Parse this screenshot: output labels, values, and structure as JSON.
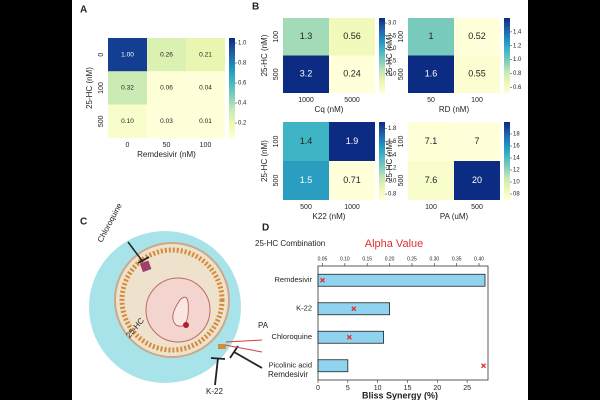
{
  "panel_labels": [
    "A",
    "B",
    "C",
    "D"
  ],
  "diagram": {
    "labels": [
      "Chloroquine",
      "25-HC",
      "PA",
      "K-22",
      "Remdesivir"
    ]
  },
  "chart_data": [
    {
      "type": "heatmap",
      "x_label": "Remdesivir (nM)",
      "y_label": "25-HC (nM)",
      "x": [
        "0",
        "50",
        "100"
      ],
      "y": [
        "0",
        "100",
        "500"
      ],
      "values": [
        [
          1.0,
          0.26,
          0.21
        ],
        [
          0.32,
          0.06,
          0.04
        ],
        [
          0.1,
          0.03,
          0.01
        ]
      ],
      "value_labels": [
        [
          "1.00",
          "0.26",
          "0.21"
        ],
        [
          "0.32",
          "0.06",
          "0.04"
        ],
        [
          "0.10",
          "0.03",
          "0.01"
        ]
      ],
      "clim": [
        0.05,
        1.05
      ],
      "cticks": [
        0.2,
        0.4,
        0.6,
        0.8,
        {
          "value": 1.0,
          "label": "1.0"
        }
      ]
    },
    {
      "type": "heatmap",
      "x_label": "Cq (nM)",
      "y_label": "25-HC (nM)",
      "x": [
        "1000",
        "5000"
      ],
      "y": [
        "100",
        "500"
      ],
      "values": [
        [
          1.3,
          0.56
        ],
        [
          3.2,
          0.24
        ]
      ],
      "clim": [
        0.24,
        3.2
      ],
      "cticks": [
        {
          "value": 1.0,
          "label": "1.0"
        },
        1.5,
        {
          "value": 2.0,
          "label": "2.0"
        },
        2.5,
        {
          "value": 3.0,
          "label": "3.0"
        }
      ]
    },
    {
      "type": "heatmap",
      "x_label": "RD (nM)",
      "y_label": "25-HC (nM)",
      "x": [
        "50",
        "100"
      ],
      "y": [
        "100",
        "500"
      ],
      "values": [
        [
          1,
          0.52
        ],
        [
          1.6,
          0.55
        ]
      ],
      "clim": [
        0.52,
        1.6
      ],
      "cticks": [
        0.6,
        0.8,
        {
          "value": 1.0,
          "label": "1.0"
        },
        1.2,
        1.4
      ]
    },
    {
      "type": "heatmap",
      "x_label": "K22 (nM)",
      "y_label": "25-HC (nM)",
      "x": [
        "500",
        "1000"
      ],
      "y": [
        "100",
        "500"
      ],
      "values": [
        [
          1.4,
          1.9
        ],
        [
          1.5,
          0.71
        ]
      ],
      "clim": [
        0.71,
        1.9
      ],
      "cticks": [
        0.8,
        {
          "value": 1.0,
          "label": "1.0"
        },
        1.2,
        1.4,
        1.6,
        1.8
      ]
    },
    {
      "type": "heatmap",
      "x_label": "PA (uM)",
      "y_label": "25-HC (nM)",
      "x": [
        "100",
        "500"
      ],
      "y": [
        "100",
        "500"
      ],
      "values": [
        [
          7.1,
          7
        ],
        [
          7.6,
          20
        ]
      ],
      "clim": [
        7,
        20
      ],
      "cticks": [
        {
          "value": 8,
          "label": "08"
        },
        10,
        12,
        14,
        16,
        18
      ]
    },
    {
      "type": "hbar",
      "title": "25-HC Combination",
      "x2_label": "Alpha Value",
      "x_label": "Bliss Synergy (%)",
      "categories": [
        "Remdesivir",
        "K-22",
        "Chloroquine",
        "Picolinic acid"
      ],
      "values": [
        28,
        12,
        11,
        5
      ],
      "color": "#8fd3ef",
      "alpha_values": [
        0.05,
        0.12,
        0.11,
        0.41
      ],
      "alpha_color": "#e03030",
      "xlim": [
        0,
        28.5
      ],
      "xticks": [
        0,
        5,
        10,
        15,
        20,
        25
      ],
      "x2lim": [
        0.04,
        0.42
      ],
      "x2ticks": [
        0.05,
        {
          "value": 0.1,
          "label": "0.10"
        },
        0.15,
        {
          "value": 0.2,
          "label": "0.20"
        },
        0.25,
        {
          "value": 0.3,
          "label": "0.30"
        },
        0.35,
        {
          "value": 0.4,
          "label": "0.40"
        }
      ]
    }
  ]
}
